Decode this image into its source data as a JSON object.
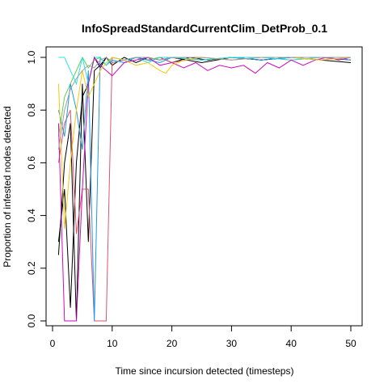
{
  "chart_data": {
    "type": "line",
    "title": "InfoSpreadStandardCurrentClim_DetProb_0.1",
    "xlabel": "Time since incursion detected (timesteps)",
    "ylabel": "Proportion of infested nodes detected",
    "xlim": [
      0,
      50
    ],
    "ylim": [
      0,
      1
    ],
    "xticks": [
      "0",
      "10",
      "20",
      "30",
      "40",
      "50"
    ],
    "yticks": [
      "0.0",
      "0.2",
      "0.4",
      "0.6",
      "0.8",
      "1.0"
    ],
    "grid": false,
    "legend": "none",
    "series": [
      {
        "color": "#000000",
        "x": [
          1,
          2,
          3,
          4,
          5,
          6,
          7,
          8,
          9,
          10,
          12,
          14,
          16,
          18,
          20,
          23,
          26,
          30,
          35,
          40,
          45,
          50
        ],
        "y": [
          0.25,
          0.6,
          0.75,
          0.0,
          0.9,
          0.3,
          0.95,
          0.97,
          1.0,
          0.98,
          0.99,
          1.0,
          0.99,
          1.0,
          0.98,
          1.0,
          0.99,
          1.0,
          0.99,
          1.0,
          1.0,
          0.99
        ]
      },
      {
        "color": "#000000",
        "x": [
          1,
          2,
          3,
          4,
          5,
          6,
          7,
          8,
          9,
          10,
          12,
          14,
          16,
          18,
          20,
          25,
          30,
          35,
          40,
          45,
          50
        ],
        "y": [
          0.3,
          0.5,
          0.05,
          0.6,
          0.85,
          0.9,
          1.0,
          0.96,
          1.0,
          0.97,
          1.0,
          0.98,
          1.0,
          0.99,
          1.0,
          0.98,
          1.0,
          0.99,
          1.0,
          0.99,
          0.98
        ]
      },
      {
        "color": "#DF536B",
        "x": [
          1,
          2,
          3,
          4,
          5,
          6,
          7,
          8,
          9,
          10,
          12,
          14,
          16,
          18,
          20,
          25,
          30,
          35,
          40,
          45,
          50
        ],
        "y": [
          0.6,
          0.75,
          0.8,
          0.33,
          0.5,
          0.5,
          0.0,
          0.0,
          0.0,
          1.0,
          0.99,
          1.0,
          0.99,
          1.0,
          0.98,
          1.0,
          0.99,
          1.0,
          1.0,
          1.0,
          1.0
        ]
      },
      {
        "color": "#61D04F",
        "x": [
          1,
          2,
          3,
          4,
          5,
          6,
          7,
          8,
          9,
          10,
          12,
          14,
          16,
          18,
          20,
          25,
          30,
          35,
          40,
          45,
          50
        ],
        "y": [
          0.7,
          0.85,
          0.9,
          0.95,
          1.0,
          0.96,
          0.99,
          1.0,
          0.97,
          1.0,
          0.99,
          1.0,
          0.99,
          1.0,
          1.0,
          0.99,
          1.0,
          1.0,
          0.99,
          1.0,
          1.0
        ]
      },
      {
        "color": "#2297E6",
        "x": [
          1,
          2,
          3,
          4,
          5,
          6,
          7,
          8,
          9,
          10,
          12,
          14,
          16,
          18,
          20,
          25,
          30,
          35,
          40,
          45,
          50
        ],
        "y": [
          0.8,
          0.7,
          0.9,
          0.8,
          0.65,
          0.95,
          0.0,
          1.0,
          0.97,
          0.99,
          0.98,
          1.0,
          0.99,
          0.98,
          1.0,
          0.99,
          1.0,
          0.99,
          1.0,
          1.0,
          0.99
        ]
      },
      {
        "color": "#28E2E5",
        "x": [
          1,
          2,
          3,
          4,
          5,
          6,
          7,
          8,
          9,
          10,
          12,
          14,
          16,
          18,
          20,
          25,
          30,
          35,
          40,
          45,
          50
        ],
        "y": [
          1.0,
          1.0,
          0.95,
          0.9,
          1.0,
          0.9,
          1.0,
          1.0,
          0.97,
          1.0,
          0.99,
          1.0,
          0.98,
          1.0,
          1.0,
          0.99,
          1.0,
          1.0,
          0.99,
          1.0,
          1.0
        ]
      },
      {
        "color": "#CD0BBC",
        "x": [
          1,
          2,
          3,
          4,
          5,
          6,
          7,
          8,
          9,
          10,
          12,
          14,
          16,
          18,
          20,
          22,
          24,
          26,
          28,
          30,
          32,
          34,
          36,
          38,
          40,
          42,
          44,
          46,
          48,
          50
        ],
        "y": [
          0.75,
          0.0,
          0.0,
          0.0,
          0.5,
          0.9,
          1.0,
          0.97,
          0.95,
          0.93,
          0.98,
          0.99,
          1.0,
          0.97,
          0.98,
          0.96,
          0.98,
          0.95,
          0.97,
          0.96,
          0.97,
          0.94,
          0.98,
          0.96,
          0.99,
          0.97,
          0.99,
          1.0,
          0.99,
          1.0
        ]
      },
      {
        "color": "#F5C710",
        "x": [
          1,
          2,
          3,
          4,
          5,
          6,
          7,
          8,
          9,
          10,
          12,
          14,
          16,
          18,
          19,
          20,
          22,
          25,
          30,
          35,
          40,
          45,
          50
        ],
        "y": [
          0.9,
          0.35,
          0.6,
          0.8,
          0.95,
          0.85,
          0.9,
          0.95,
          0.98,
          1.0,
          0.99,
          0.97,
          0.98,
          0.95,
          0.94,
          0.97,
          0.99,
          1.0,
          0.99,
          1.0,
          1.0,
          0.99,
          1.0
        ]
      },
      {
        "color": "#9E9E9E",
        "x": [
          1,
          2,
          3,
          4,
          5,
          6,
          7,
          8,
          9,
          10,
          12,
          14,
          16,
          18,
          20,
          25,
          30,
          35,
          40,
          45,
          50
        ],
        "y": [
          0.65,
          0.8,
          0.88,
          0.92,
          0.95,
          0.97,
          0.96,
          0.99,
          1.0,
          0.98,
          0.99,
          1.0,
          1.0,
          0.99,
          1.0,
          1.0,
          0.99,
          1.0,
          1.0,
          1.0,
          1.0
        ]
      }
    ]
  }
}
